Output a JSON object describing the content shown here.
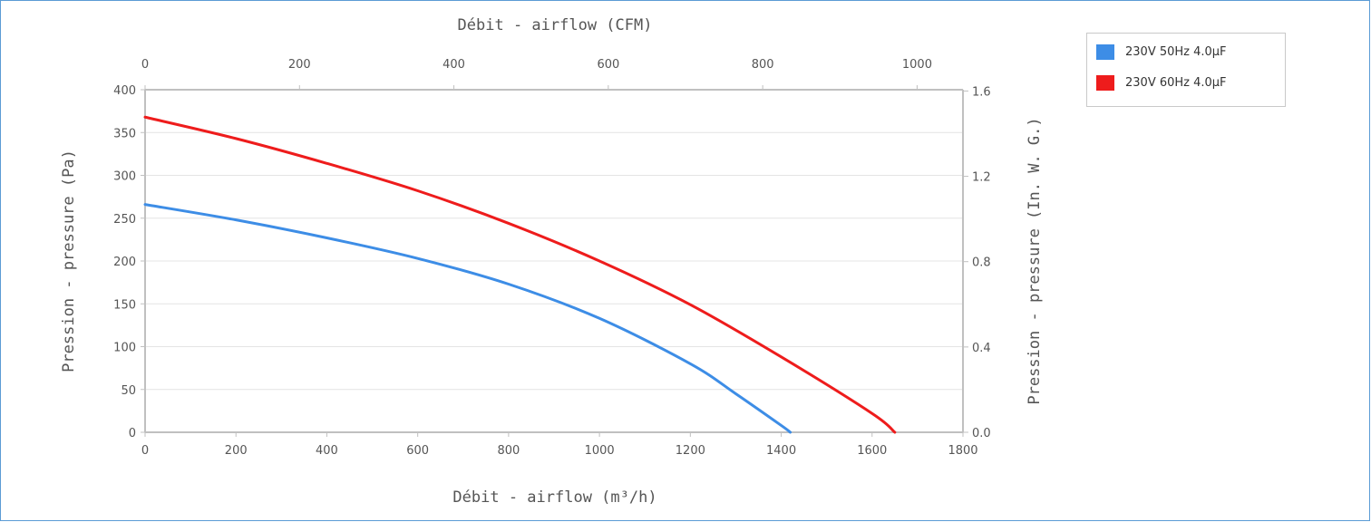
{
  "chart_data": {
    "type": "line",
    "title": "",
    "xlabel": "Débit - airflow (m³/h)",
    "x2label": "Débit - airflow (CFM)",
    "ylabel": "Pression - pressure (Pa)",
    "y2label": "Pression - pressure (In. W. G.)",
    "xlim": [
      0,
      1800
    ],
    "ylim": [
      0,
      400
    ],
    "x2lim": [
      0,
      1059.4
    ],
    "y2lim": [
      0,
      1.606
    ],
    "xticks": [
      0,
      200,
      400,
      600,
      800,
      1000,
      1200,
      1400,
      1600,
      1800
    ],
    "yticks": [
      0,
      50,
      100,
      150,
      200,
      250,
      300,
      350,
      400
    ],
    "x2ticks": [
      0,
      200,
      400,
      600,
      800,
      1000
    ],
    "y2ticks": [
      "0.0",
      "0.4",
      "0.8",
      "1.2",
      "1.6"
    ],
    "grid": true,
    "legend_position": "top-right",
    "series": [
      {
        "name": "230V 50Hz 4.0µF",
        "color": "#3d8de6",
        "x": [
          0,
          200,
          400,
          600,
          800,
          1000,
          1200,
          1300,
          1400,
          1420
        ],
        "y": [
          266,
          248,
          227,
          203,
          173,
          133,
          80,
          45,
          8,
          0
        ]
      },
      {
        "name": "230V 60Hz 4.0µF",
        "color": "#ee1c1c",
        "x": [
          0,
          200,
          400,
          600,
          800,
          1000,
          1200,
          1400,
          1600,
          1650
        ],
        "y": [
          368,
          343,
          314,
          282,
          244,
          200,
          149,
          88,
          22,
          0
        ]
      }
    ]
  }
}
